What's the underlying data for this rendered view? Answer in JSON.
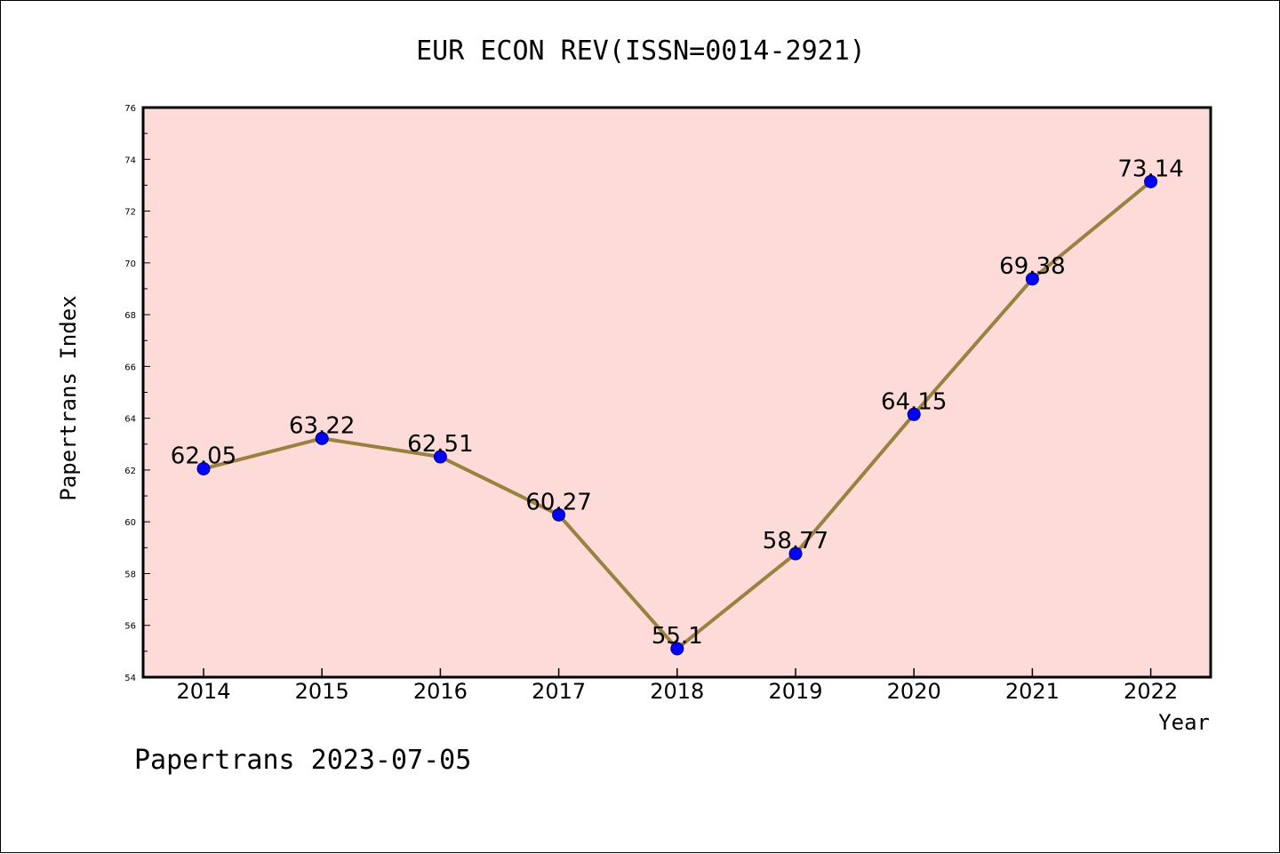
{
  "chart_data": {
    "type": "line",
    "title": "EUR ECON REV(ISSN=0014-2921)",
    "xlabel": "Year",
    "ylabel": "Papertrans Index",
    "categories": [
      "2014",
      "2015",
      "2016",
      "2017",
      "2018",
      "2019",
      "2020",
      "2021",
      "2022"
    ],
    "series": [
      {
        "values": [
          62.05,
          63.22,
          62.51,
          60.27,
          55.1,
          58.77,
          64.15,
          69.38,
          73.14
        ],
        "labels": [
          "62.05",
          "63.22",
          "62.51",
          "60.27",
          "55.1",
          "58.77",
          "64.15",
          "69.38",
          "73.14"
        ]
      }
    ],
    "ylim": [
      54,
      76
    ],
    "yticks": [
      "54",
      "56",
      "58",
      "60",
      "62",
      "64",
      "66",
      "68",
      "70",
      "72",
      "74",
      "76"
    ],
    "grid": false,
    "legend": "none"
  },
  "footer": "Papertrans 2023-07-05",
  "colors": {
    "plot_background": "#fddbd9",
    "line": "#9b8040",
    "marker": "#0000ff",
    "marker_edge": "#000080"
  }
}
